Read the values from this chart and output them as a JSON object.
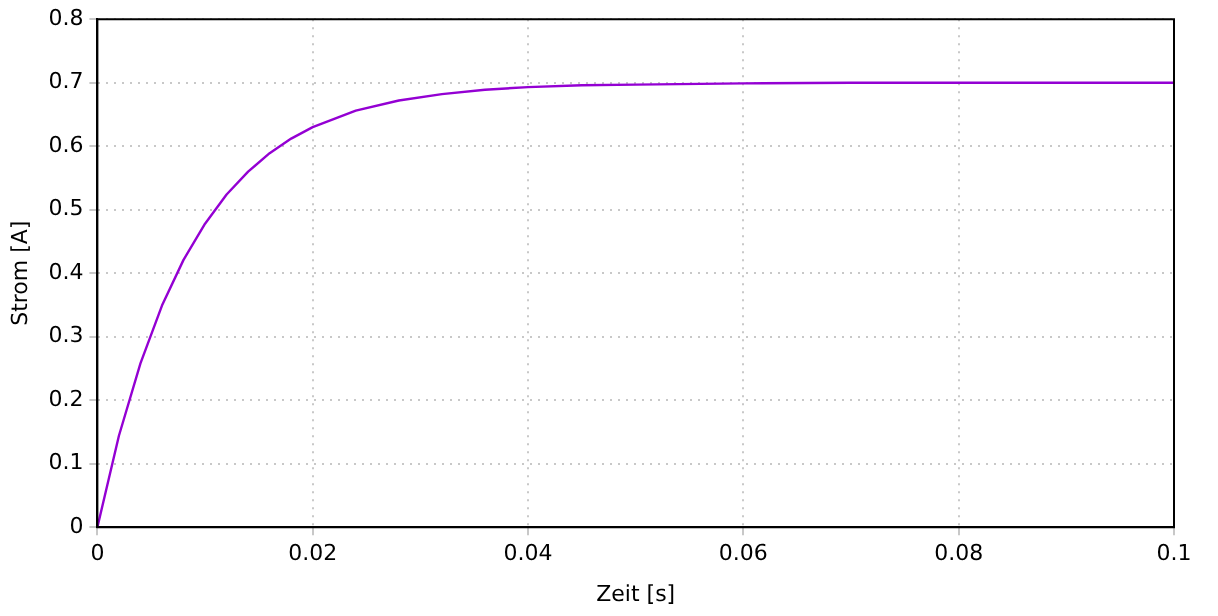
{
  "chart_data": {
    "type": "line",
    "xlabel": "Zeit [s]",
    "ylabel": "Strom [A]",
    "x": [
      0,
      0.002,
      0.004,
      0.006,
      0.008,
      0.01,
      0.012,
      0.014,
      0.016,
      0.018,
      0.02,
      0.024,
      0.028,
      0.032,
      0.036,
      0.04,
      0.045,
      0.05,
      0.06,
      0.07,
      0.08,
      0.09,
      0.1
    ],
    "series": [
      {
        "color": "#9400d3",
        "values": [
          0,
          0.144,
          0.258,
          0.349,
          0.421,
          0.478,
          0.524,
          0.56,
          0.589,
          0.612,
          0.63,
          0.656,
          0.672,
          0.682,
          0.689,
          0.693,
          0.696,
          0.697,
          0.699,
          0.7,
          0.7,
          0.7,
          0.7
        ]
      }
    ],
    "xlim": [
      0,
      0.1
    ],
    "xticks": [
      0,
      0.02,
      0.04,
      0.06,
      0.08,
      0.1
    ],
    "ylim": [
      0,
      0.8
    ],
    "yticks": [
      0,
      0.1,
      0.2,
      0.3,
      0.4,
      0.5,
      0.6,
      0.7,
      0.8
    ],
    "grid": true,
    "legend": false,
    "marker": "none",
    "line_style": "solid"
  }
}
